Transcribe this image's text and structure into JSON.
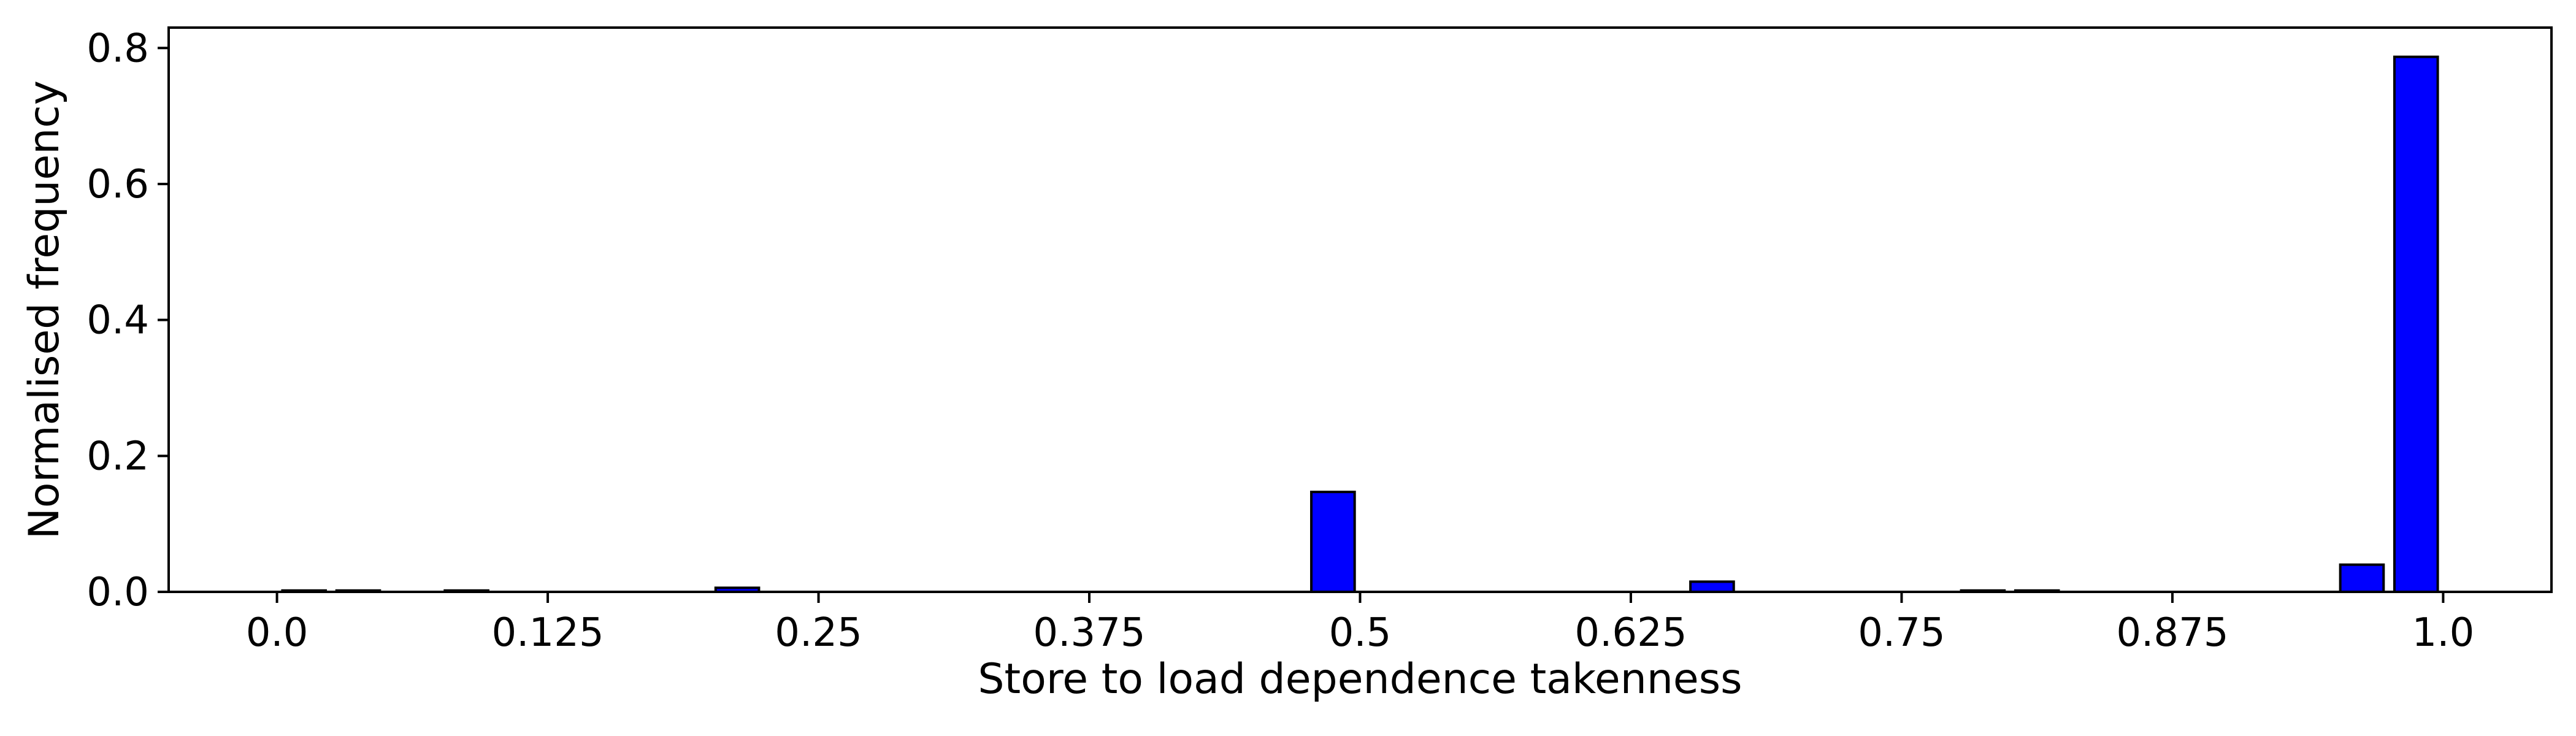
{
  "chart_data": {
    "type": "bar",
    "title": "",
    "xlabel": "Store to load dependence takenness",
    "ylabel": "Normalised frequency",
    "xlim": [
      -0.05,
      1.05
    ],
    "ylim": [
      0.0,
      0.83
    ],
    "xticks": [
      0.0,
      0.125,
      0.25,
      0.375,
      0.5,
      0.625,
      0.75,
      0.875,
      1.0
    ],
    "xtick_labels": [
      "0.0",
      "0.125",
      "0.25",
      "0.375",
      "0.5",
      "0.625",
      "0.75",
      "0.875",
      "1.0"
    ],
    "yticks": [
      0.0,
      0.2,
      0.4,
      0.6,
      0.8
    ],
    "ytick_labels": [
      "0.0",
      "0.2",
      "0.4",
      "0.6",
      "0.8"
    ],
    "bar_width": 0.02,
    "bar_color": "#0000ff",
    "edge_color": "#000000",
    "grid": false,
    "legend": "none",
    "bars": [
      {
        "x": 0.0125,
        "value": 0.002
      },
      {
        "x": 0.0375,
        "value": 0.002
      },
      {
        "x": 0.0875,
        "value": 0.002
      },
      {
        "x": 0.2125,
        "value": 0.006
      },
      {
        "x": 0.4875,
        "value": 0.147
      },
      {
        "x": 0.6625,
        "value": 0.015
      },
      {
        "x": 0.7875,
        "value": 0.002
      },
      {
        "x": 0.8125,
        "value": 0.002
      },
      {
        "x": 0.9625,
        "value": 0.04
      },
      {
        "x": 0.9875,
        "value": 0.787
      }
    ]
  }
}
